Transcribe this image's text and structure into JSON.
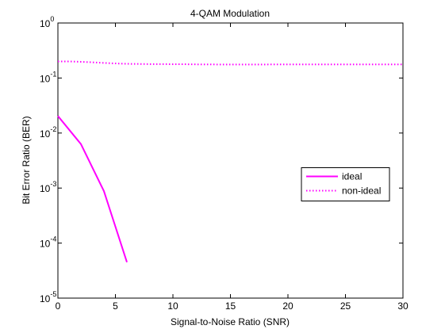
{
  "chart_data": {
    "type": "line",
    "title": "4-QAM Modulation",
    "xlabel": "Signal-to-Noise Ratio (SNR)",
    "ylabel": "Bit Error Ratio (BER)",
    "xlim": [
      0,
      30
    ],
    "xticks": [
      0,
      5,
      10,
      15,
      20,
      25,
      30
    ],
    "ylim": [
      1e-05,
      1
    ],
    "yscale": "log",
    "yticks": [
      {
        "value": 1e-05,
        "label": "10",
        "exponent": "-5"
      },
      {
        "value": 0.0001,
        "label": "10",
        "exponent": "-4"
      },
      {
        "value": 0.001,
        "label": "10",
        "exponent": "-3"
      },
      {
        "value": 0.01,
        "label": "10",
        "exponent": "-2"
      },
      {
        "value": 0.1,
        "label": "10",
        "exponent": "-1"
      },
      {
        "value": 1,
        "label": "10",
        "exponent": "0"
      }
    ],
    "legend": "east",
    "series": [
      {
        "name": "ideal",
        "color": "#ff00ff",
        "style": "solid",
        "x": [
          0,
          2,
          4,
          6
        ],
        "values": [
          0.0204,
          0.0063,
          0.00088,
          4.5e-05
        ]
      },
      {
        "name": "non-ideal",
        "color": "#ff00ff",
        "style": "dotted",
        "x": [
          0,
          1,
          2,
          3,
          4,
          5,
          6,
          7,
          8,
          9,
          10,
          11,
          12,
          13,
          14,
          15,
          16,
          17,
          18,
          19,
          20,
          21,
          22,
          23,
          24,
          25,
          26,
          27,
          28,
          29,
          30
        ],
        "values": [
          0.2,
          0.2,
          0.197,
          0.193,
          0.188,
          0.184,
          0.181,
          0.18,
          0.179,
          0.179,
          0.178,
          0.178,
          0.177,
          0.177,
          0.176,
          0.176,
          0.176,
          0.176,
          0.176,
          0.177,
          0.177,
          0.177,
          0.177,
          0.177,
          0.177,
          0.177,
          0.177,
          0.177,
          0.177,
          0.177,
          0.177
        ]
      }
    ]
  }
}
